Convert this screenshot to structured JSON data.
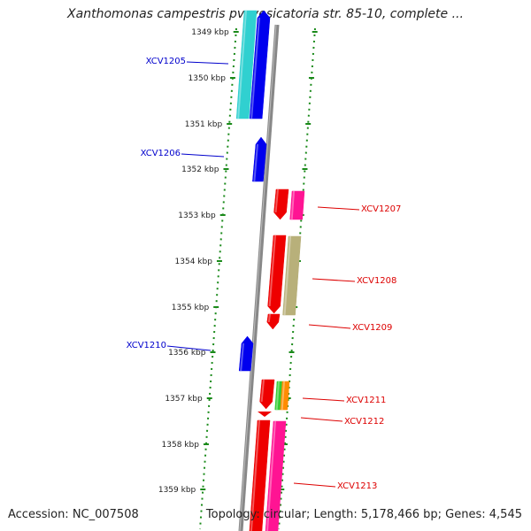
{
  "title": "Xanthomonas campestris pv. vesicatoria str. 85-10, complete ...",
  "footer": {
    "accession": "Accession: NC_007508",
    "summary": "Topology: circular; Length: 5,178,466 bp; Genes: 4,545"
  },
  "scale": {
    "unit": "kbp",
    "ticks": [
      "1349 kbp",
      "1350 kbp",
      "1351 kbp",
      "1352 kbp",
      "1353 kbp",
      "1354 kbp",
      "1355 kbp",
      "1356 kbp",
      "1357 kbp",
      "1358 kbp",
      "1359 kbp"
    ]
  },
  "colors": {
    "forward_label": "#0000cc",
    "reverse_label": "#dd0000",
    "ruler_dots": "#1a8a1a",
    "axis": "#888888"
  },
  "genes": [
    {
      "name": "XCV1205",
      "strand": "forward",
      "color": "#0000ee"
    },
    {
      "name": "XCV1206",
      "strand": "forward",
      "color": "#0000ee"
    },
    {
      "name": "XCV1207",
      "strand": "reverse",
      "color": "#ee0000"
    },
    {
      "name": "XCV1208",
      "strand": "reverse",
      "color": "#ee0000"
    },
    {
      "name": "XCV1209",
      "strand": "reverse",
      "color": "#ee0000"
    },
    {
      "name": "XCV1210",
      "strand": "forward",
      "color": "#0000ee"
    },
    {
      "name": "XCV1211",
      "strand": "reverse",
      "color": "#ee0000"
    },
    {
      "name": "XCV1212",
      "strand": "reverse",
      "color": "#ee0000"
    },
    {
      "name": "XCV1213",
      "strand": "reverse",
      "color": "#ee0000"
    }
  ],
  "features": [
    {
      "type": "feature",
      "color": "#30d0d0"
    },
    {
      "type": "feature",
      "color": "#ff1493"
    },
    {
      "type": "feature",
      "color": "#b8b07a"
    },
    {
      "type": "feature",
      "color": "#33cc33"
    },
    {
      "type": "feature",
      "color": "#ff8c00"
    },
    {
      "type": "feature",
      "color": "#ff1493"
    }
  ]
}
